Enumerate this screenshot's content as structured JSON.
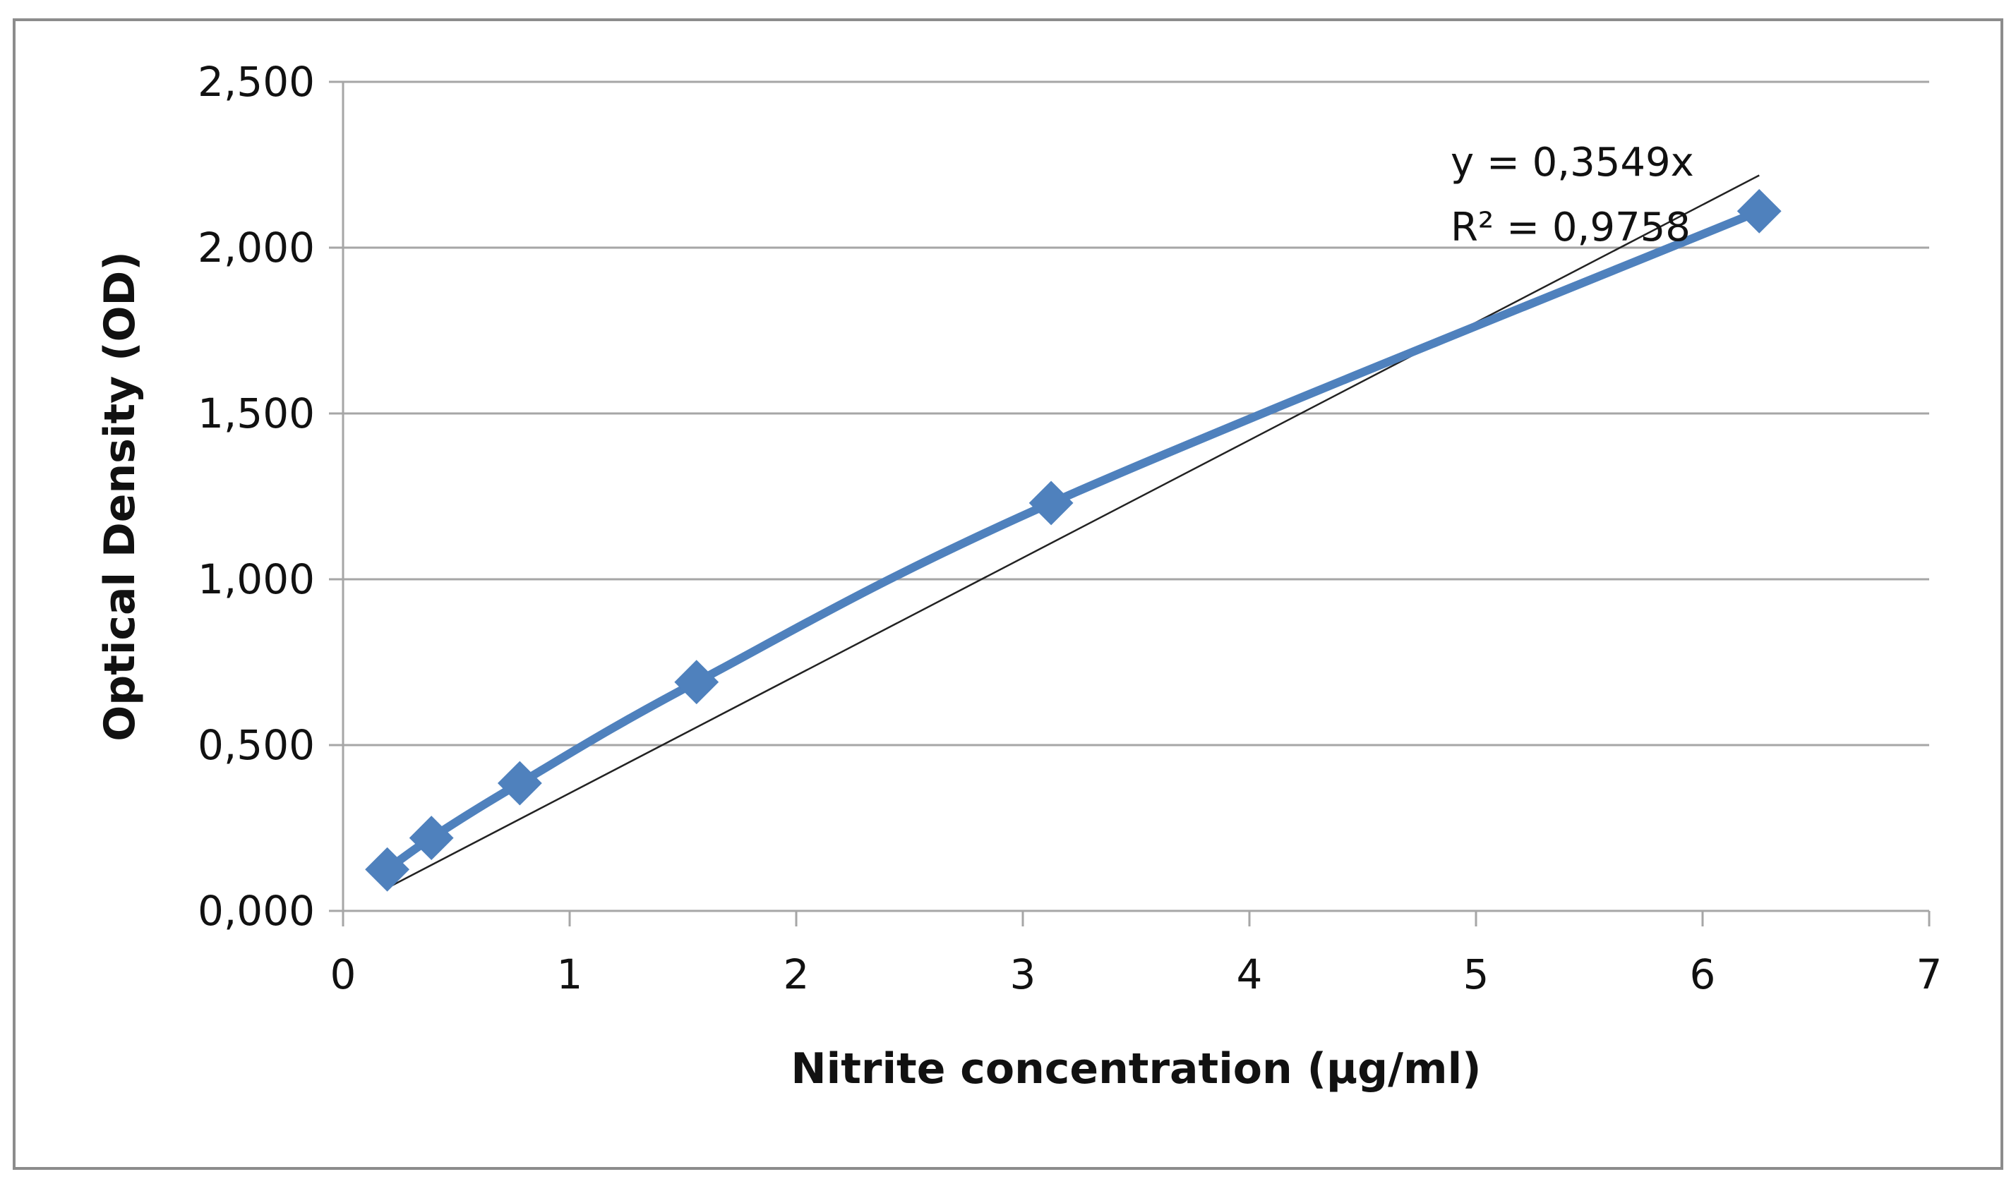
{
  "chart_data": {
    "type": "scatter",
    "title": "",
    "xlabel": "Nitrite concentration (µg/ml)",
    "ylabel": "Optical Density (OD)",
    "xlim": [
      0,
      7
    ],
    "ylim": [
      0,
      2.5
    ],
    "x_ticks": [
      {
        "value": 0,
        "label": "0"
      },
      {
        "value": 1,
        "label": "1"
      },
      {
        "value": 2,
        "label": "2"
      },
      {
        "value": 3,
        "label": "3"
      },
      {
        "value": 4,
        "label": "4"
      },
      {
        "value": 5,
        "label": "5"
      },
      {
        "value": 6,
        "label": "6"
      },
      {
        "value": 7,
        "label": "7"
      }
    ],
    "y_ticks": [
      {
        "value": 0,
        "label": "0,000"
      },
      {
        "value": 0.5,
        "label": "0,500"
      },
      {
        "value": 1.0,
        "label": "1,000"
      },
      {
        "value": 1.5,
        "label": "1,500"
      },
      {
        "value": 2.0,
        "label": "2,000"
      },
      {
        "value": 2.5,
        "label": "2,500"
      }
    ],
    "grid": "horizontal",
    "legend": "none",
    "series": [
      {
        "color": "#4f81bd",
        "marker": "diamond",
        "line": "smooth",
        "x": [
          0.195,
          0.39,
          0.78,
          1.56,
          3.125,
          6.25
        ],
        "y": [
          0.125,
          0.22,
          0.385,
          0.69,
          1.23,
          2.11
        ]
      }
    ],
    "trendline": {
      "type": "linear-through-origin",
      "slope": 0.3549,
      "color": "#222222",
      "x_range": [
        0.195,
        6.25
      ]
    },
    "annotations": {
      "equation": "y = 0,3549x",
      "r_squared": "R² = 0,9758"
    }
  }
}
